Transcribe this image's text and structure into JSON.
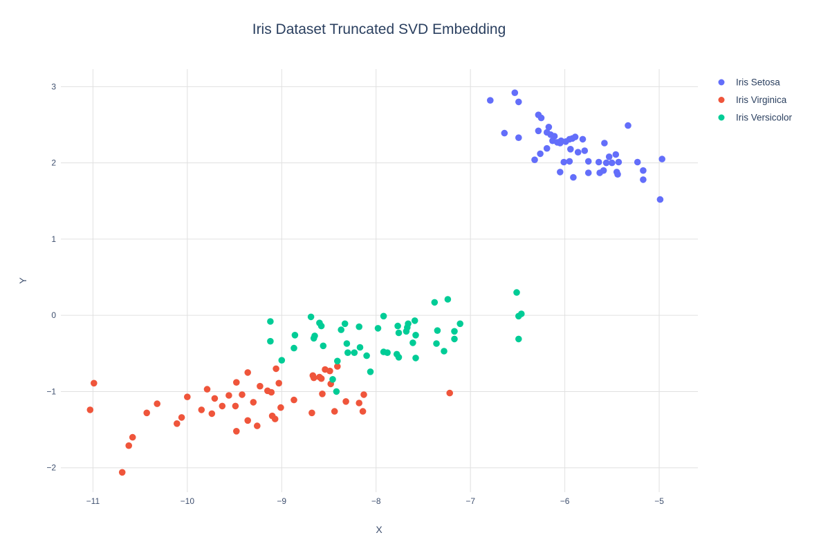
{
  "chart_data": {
    "type": "scatter",
    "title": "Iris Dataset Truncated SVD Embedding",
    "xlabel": "X",
    "ylabel": "Y",
    "xlim": [
      -11.34,
      -4.59
    ],
    "ylim": [
      -2.32,
      3.23
    ],
    "grid": true,
    "legend_position": "right-outside-top",
    "marker_radius": 4.8,
    "xticks": {
      "values": [
        -11,
        -10,
        -9,
        -8,
        -7,
        -6,
        -5
      ],
      "labels": [
        "−11",
        "−10",
        "−9",
        "−8",
        "−7",
        "−6",
        "−5"
      ]
    },
    "yticks": {
      "values": [
        -2,
        -1,
        0,
        1,
        2,
        3
      ],
      "labels": [
        "−2",
        "−1",
        "0",
        "1",
        "2",
        "3"
      ]
    },
    "colors": {
      "title_text": "#2a3f5f",
      "axis_text": "#3e4f6e",
      "grid": "#e0e0e0"
    },
    "series": [
      {
        "name": "Iris Setosa",
        "color": "#636efa",
        "points": [
          [
            -6.79,
            2.82
          ],
          [
            -6.53,
            2.92
          ],
          [
            -6.49,
            2.8
          ],
          [
            -6.64,
            2.39
          ],
          [
            -6.49,
            2.33
          ],
          [
            -6.28,
            2.63
          ],
          [
            -6.25,
            2.59
          ],
          [
            -6.17,
            2.47
          ],
          [
            -6.28,
            2.42
          ],
          [
            -6.19,
            2.4
          ],
          [
            -6.15,
            2.37
          ],
          [
            -6.11,
            2.35
          ],
          [
            -6.13,
            2.29
          ],
          [
            -6.08,
            2.27
          ],
          [
            -6.05,
            2.26
          ],
          [
            -6.19,
            2.19
          ],
          [
            -6.26,
            2.12
          ],
          [
            -6.32,
            2.04
          ],
          [
            -5.95,
            2.31
          ],
          [
            -5.92,
            2.32
          ],
          [
            -5.89,
            2.34
          ],
          [
            -5.81,
            2.31
          ],
          [
            -5.94,
            2.18
          ],
          [
            -5.86,
            2.14
          ],
          [
            -5.79,
            2.16
          ],
          [
            -5.58,
            2.26
          ],
          [
            -5.33,
            2.49
          ],
          [
            -6.01,
            2.01
          ],
          [
            -5.95,
            2.02
          ],
          [
            -6.05,
            1.88
          ],
          [
            -5.91,
            1.81
          ],
          [
            -5.75,
            2.02
          ],
          [
            -5.75,
            1.87
          ],
          [
            -5.64,
            2.01
          ],
          [
            -5.63,
            1.87
          ],
          [
            -5.59,
            1.9
          ],
          [
            -5.56,
            2.0
          ],
          [
            -5.53,
            2.08
          ],
          [
            -5.46,
            2.11
          ],
          [
            -5.5,
            2.0
          ],
          [
            -5.43,
            2.01
          ],
          [
            -5.45,
            1.88
          ],
          [
            -5.23,
            2.01
          ],
          [
            -5.17,
            1.9
          ],
          [
            -5.17,
            1.78
          ],
          [
            -4.97,
            2.05
          ],
          [
            -4.99,
            1.52
          ],
          [
            -6.04,
            2.29
          ],
          [
            -5.99,
            2.28
          ],
          [
            -5.44,
            1.85
          ]
        ]
      },
      {
        "name": "Iris Virginica",
        "color": "#ef553b",
        "points": [
          [
            -10.99,
            -0.89
          ],
          [
            -11.03,
            -1.24
          ],
          [
            -10.69,
            -2.06
          ],
          [
            -10.62,
            -1.71
          ],
          [
            -10.58,
            -1.6
          ],
          [
            -10.43,
            -1.28
          ],
          [
            -10.32,
            -1.16
          ],
          [
            -10.11,
            -1.42
          ],
          [
            -10.06,
            -1.34
          ],
          [
            -10.0,
            -1.07
          ],
          [
            -9.85,
            -1.24
          ],
          [
            -9.79,
            -0.97
          ],
          [
            -9.74,
            -1.29
          ],
          [
            -9.71,
            -1.09
          ],
          [
            -9.63,
            -1.19
          ],
          [
            -9.56,
            -1.05
          ],
          [
            -9.49,
            -1.19
          ],
          [
            -9.48,
            -1.52
          ],
          [
            -9.42,
            -1.04
          ],
          [
            -9.36,
            -0.75
          ],
          [
            -9.36,
            -1.38
          ],
          [
            -9.3,
            -1.14
          ],
          [
            -9.26,
            -1.45
          ],
          [
            -9.23,
            -0.93
          ],
          [
            -9.15,
            -0.99
          ],
          [
            -9.11,
            -1.01
          ],
          [
            -9.1,
            -1.32
          ],
          [
            -9.07,
            -1.36
          ],
          [
            -9.06,
            -0.7
          ],
          [
            -9.03,
            -0.89
          ],
          [
            -9.48,
            -0.88
          ],
          [
            -9.01,
            -1.21
          ],
          [
            -8.87,
            -1.11
          ],
          [
            -8.68,
            -1.28
          ],
          [
            -8.67,
            -0.79
          ],
          [
            -8.6,
            -0.81
          ],
          [
            -8.57,
            -1.03
          ],
          [
            -8.48,
            -0.9
          ],
          [
            -8.44,
            -1.26
          ],
          [
            -8.32,
            -1.13
          ],
          [
            -8.18,
            -1.15
          ],
          [
            -8.13,
            -1.04
          ],
          [
            -8.14,
            -1.26
          ],
          [
            -8.66,
            -0.82
          ],
          [
            -8.58,
            -0.83
          ],
          [
            -8.54,
            -0.71
          ],
          [
            -8.41,
            -0.67
          ],
          [
            -8.49,
            -0.73
          ],
          [
            -7.22,
            -1.02
          ]
        ]
      },
      {
        "name": "Iris Versicolor",
        "color": "#00cc96",
        "points": [
          [
            -9.12,
            -0.08
          ],
          [
            -9.12,
            -0.34
          ],
          [
            -9.0,
            -0.59
          ],
          [
            -8.86,
            -0.26
          ],
          [
            -8.87,
            -0.43
          ],
          [
            -8.69,
            -0.02
          ],
          [
            -8.6,
            -0.1
          ],
          [
            -8.58,
            -0.14
          ],
          [
            -8.65,
            -0.27
          ],
          [
            -8.66,
            -0.3
          ],
          [
            -8.56,
            -0.4
          ],
          [
            -8.37,
            -0.19
          ],
          [
            -8.33,
            -0.11
          ],
          [
            -8.18,
            -0.15
          ],
          [
            -8.31,
            -0.37
          ],
          [
            -8.3,
            -0.49
          ],
          [
            -8.23,
            -0.49
          ],
          [
            -8.17,
            -0.42
          ],
          [
            -8.1,
            -0.53
          ],
          [
            -8.41,
            -0.6
          ],
          [
            -8.06,
            -0.74
          ],
          [
            -8.46,
            -0.84
          ],
          [
            -8.42,
            -1.0
          ],
          [
            -7.98,
            -0.17
          ],
          [
            -7.92,
            -0.01
          ],
          [
            -7.92,
            -0.48
          ],
          [
            -7.88,
            -0.49
          ],
          [
            -7.77,
            -0.14
          ],
          [
            -7.76,
            -0.23
          ],
          [
            -7.66,
            -0.11
          ],
          [
            -7.67,
            -0.16
          ],
          [
            -7.68,
            -0.21
          ],
          [
            -7.59,
            -0.07
          ],
          [
            -7.58,
            -0.26
          ],
          [
            -7.61,
            -0.36
          ],
          [
            -7.78,
            -0.51
          ],
          [
            -7.76,
            -0.55
          ],
          [
            -7.58,
            -0.56
          ],
          [
            -7.38,
            0.17
          ],
          [
            -7.24,
            0.21
          ],
          [
            -7.35,
            -0.2
          ],
          [
            -7.36,
            -0.37
          ],
          [
            -7.28,
            -0.47
          ],
          [
            -7.17,
            -0.21
          ],
          [
            -7.17,
            -0.31
          ],
          [
            -7.11,
            -0.11
          ],
          [
            -6.51,
            0.3
          ],
          [
            -6.49,
            -0.01
          ],
          [
            -6.46,
            0.02
          ],
          [
            -6.49,
            -0.31
          ]
        ]
      }
    ]
  }
}
